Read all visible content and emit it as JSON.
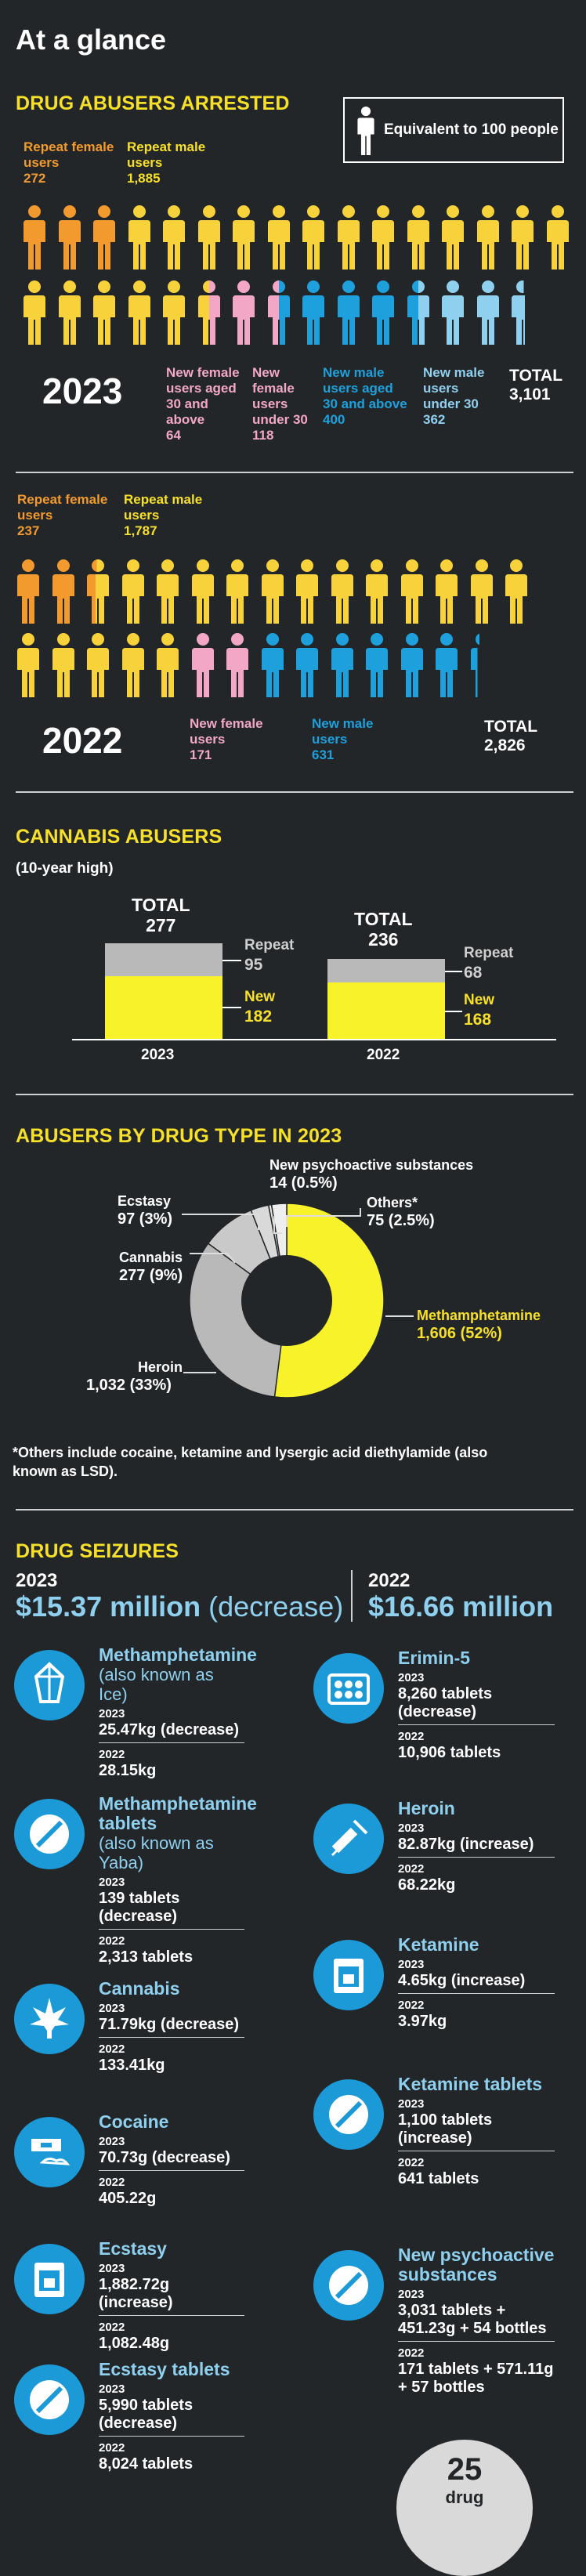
{
  "header": {
    "title": "At a glance"
  },
  "arrested": {
    "title": "DRUG ABUSERS ARRESTED",
    "legend": "Equivalent to 100 people",
    "y2023": {
      "year": "2023",
      "repeat_female_label": "Repeat female users",
      "repeat_female_value": "272",
      "repeat_male_label": "Repeat male users",
      "repeat_male_value": "1,885",
      "new_female_30_label": "New female users aged 30 and above",
      "new_female_30_value": "64",
      "new_female_u30_label": "New female users under 30",
      "new_female_u30_value": "118",
      "new_male_30_label": "New male users aged 30 and above",
      "new_male_30_value": "400",
      "new_male_u30_label": "New male users under 30",
      "new_male_u30_value": "362",
      "total_label": "TOTAL",
      "total_value": "3,101"
    },
    "y2022": {
      "year": "2022",
      "repeat_female_label": "Repeat female users",
      "repeat_female_value": "237",
      "repeat_male_label": "Repeat male users",
      "repeat_male_value": "1,787",
      "new_female_label": "New female users",
      "new_female_value": "171",
      "new_male_label": "New male users",
      "new_male_value": "631",
      "total_label": "TOTAL",
      "total_value": "2,826"
    },
    "colors": {
      "repeat_female": "#f29a2e",
      "repeat_male": "#f7d23a",
      "new_female": "#f2a7c6",
      "new_male": "#1ea0dc",
      "new_male_u30": "#8fd0ef"
    }
  },
  "cannabis": {
    "title": "CANNABIS ABUSERS",
    "subtitle": "(10-year high)",
    "bars": [
      {
        "year": "2023",
        "total_label": "TOTAL",
        "total": "277",
        "repeat_label": "Repeat",
        "repeat": "95",
        "new_label": "New",
        "new": "182"
      },
      {
        "year": "2022",
        "total_label": "TOTAL",
        "total": "236",
        "repeat_label": "Repeat",
        "repeat": "68",
        "new_label": "New",
        "new": "168"
      }
    ],
    "colors": {
      "repeat": "#b9b9b9",
      "new": "#f7f22a"
    }
  },
  "drugtype": {
    "title": "ABUSERS BY DRUG TYPE IN 2023",
    "segments": [
      {
        "name": "Methamphetamine",
        "value": "1,606 (52%)",
        "share": 52,
        "color": "#f7f22a"
      },
      {
        "name": "Heroin",
        "value": "1,032 (33%)",
        "share": 33,
        "color": "#b9b9b9"
      },
      {
        "name": "Cannabis",
        "value": "277 (9%)",
        "share": 9,
        "color": "#c9c9c9"
      },
      {
        "name": "Ecstasy",
        "value": "97 (3%)",
        "share": 3,
        "color": "#d9d9d9"
      },
      {
        "name": "New psychoactive substances",
        "value": "14 (0.5%)",
        "share": 0.5,
        "color": "#e6e6e6"
      },
      {
        "name": "Others*",
        "value": "75 (2.5%)",
        "share": 2.5,
        "color": "#eeeeee"
      }
    ],
    "footnote": "*Others include cocaine, ketamine and lysergic acid diethylamide (also known as LSD)."
  },
  "seizures": {
    "title": "DRUG SEIZURES",
    "y2023": {
      "year": "2023",
      "amount": "$15.37 million",
      "note": "(decrease)"
    },
    "y2022": {
      "year": "2022",
      "amount": "$16.66 million"
    },
    "left": [
      {
        "name": "Methamphetamine",
        "sub": "(also known as Ice)",
        "icon": "crystal-icon",
        "y1": "2023",
        "v1": "25.47kg (decrease)",
        "y2": "2022",
        "v2": "28.15kg"
      },
      {
        "name": "Methamphetamine tablets",
        "sub": "(also known as Yaba)",
        "icon": "tablet-icon",
        "y1": "2023",
        "v1": "139 tablets (decrease)",
        "y2": "2022",
        "v2": "2,313 tablets"
      },
      {
        "name": "Cannabis",
        "sub": "",
        "icon": "cannabis-leaf-icon",
        "y1": "2023",
        "v1": "71.79kg (decrease)",
        "y2": "2022",
        "v2": "133.41kg"
      },
      {
        "name": "Cocaine",
        "sub": "",
        "icon": "cocaine-razor-icon",
        "y1": "2023",
        "v1": "70.73g (decrease)",
        "y2": "2022",
        "v2": "405.22g"
      },
      {
        "name": "Ecstasy",
        "sub": "",
        "icon": "powder-bag-icon",
        "y1": "2023",
        "v1": "1,882.72g (increase)",
        "y2": "2022",
        "v2": "1,082.48g"
      },
      {
        "name": "Ecstasy tablets",
        "sub": "",
        "icon": "tablet-icon",
        "y1": "2023",
        "v1": "5,990 tablets (decrease)",
        "y2": "2022",
        "v2": "8,024 tablets"
      }
    ],
    "right": [
      {
        "name": "Erimin-5",
        "sub": "",
        "icon": "blister-pack-icon",
        "y1": "2023",
        "v1": "8,260 tablets (decrease)",
        "y2": "2022",
        "v2": "10,906 tablets"
      },
      {
        "name": "Heroin",
        "sub": "",
        "icon": "syringe-icon",
        "y1": "2023",
        "v1": "82.87kg (increase)",
        "y2": "2022",
        "v2": "68.22kg"
      },
      {
        "name": "Ketamine",
        "sub": "",
        "icon": "powder-bag-icon",
        "y1": "2023",
        "v1": "4.65kg (increase)",
        "y2": "2022",
        "v2": "3.97kg"
      },
      {
        "name": "Ketamine tablets",
        "sub": "",
        "icon": "tablet-icon",
        "y1": "2023",
        "v1": "1,100 tablets (increase)",
        "y2": "2022",
        "v2": "641 tablets"
      },
      {
        "name": "New psychoactive substances",
        "sub": "",
        "icon": "tablet-icon",
        "y1": "2023",
        "v1": "3,031 tablets + 451.23g + 54 bottles",
        "y2": "2022",
        "v2": "171 tablets + 571.11g + 57 bottles"
      }
    ],
    "badge": {
      "number": "25",
      "label": "drug"
    }
  }
}
